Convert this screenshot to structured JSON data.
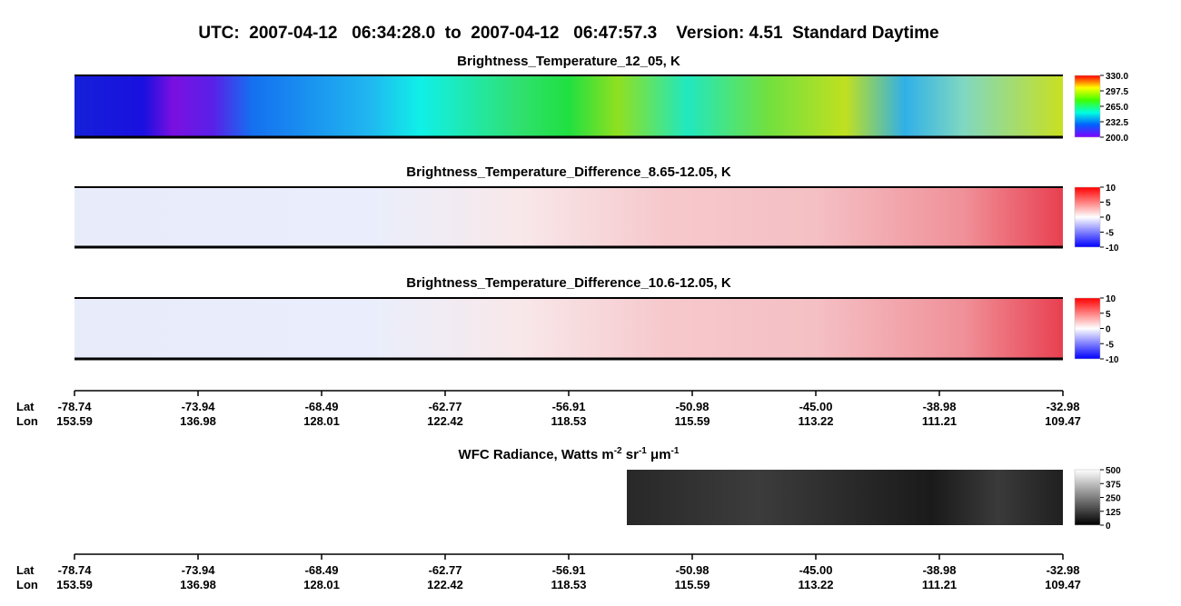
{
  "chart_data": [
    {
      "type": "heatmap",
      "title": "Brightness_Temperature_12_05, K",
      "clim": [
        200,
        330
      ],
      "colorbar_ticks": [
        {
          "value": 200,
          "label": "200.0"
        },
        {
          "value": 232.5,
          "label": "232.5"
        },
        {
          "value": 265,
          "label": "265.0"
        },
        {
          "value": 297.5,
          "label": "297.5"
        },
        {
          "value": 330,
          "label": "330.0"
        }
      ]
    },
    {
      "type": "heatmap",
      "title": "Brightness_Temperature_Difference_8.65-12.05, K",
      "clim": [
        -10,
        10
      ],
      "colorbar_ticks": [
        -10,
        -5,
        0,
        5,
        10
      ]
    },
    {
      "type": "heatmap",
      "title": "Brightness_Temperature_Difference_10.6-12.05, K",
      "clim": [
        -10,
        10
      ],
      "colorbar_ticks": [
        -10,
        -5,
        0,
        5,
        10
      ]
    },
    {
      "type": "heatmap",
      "title_parts": [
        "WFC Radiance, Watts m",
        "-2",
        " sr",
        "-1",
        " μm",
        "-1"
      ],
      "clim": [
        0,
        500
      ],
      "colorbar_ticks": [
        0,
        125,
        250,
        375,
        500
      ]
    }
  ],
  "title": "UTC:  2007-04-12   06:34:28.0  to  2007-04-12   06:47:57.3    Version: 4.51  Standard Daytime",
  "axis": {
    "lat_label": "Lat",
    "lon_label": "Lon",
    "lat": [
      "-78.74",
      "-73.94",
      "-68.49",
      "-62.77",
      "-56.91",
      "-50.98",
      "-45.00",
      "-38.98",
      "-32.98"
    ],
    "lon": [
      "153.59",
      "136.98",
      "128.01",
      "122.42",
      "118.53",
      "115.59",
      "113.22",
      "111.21",
      "109.47"
    ]
  }
}
